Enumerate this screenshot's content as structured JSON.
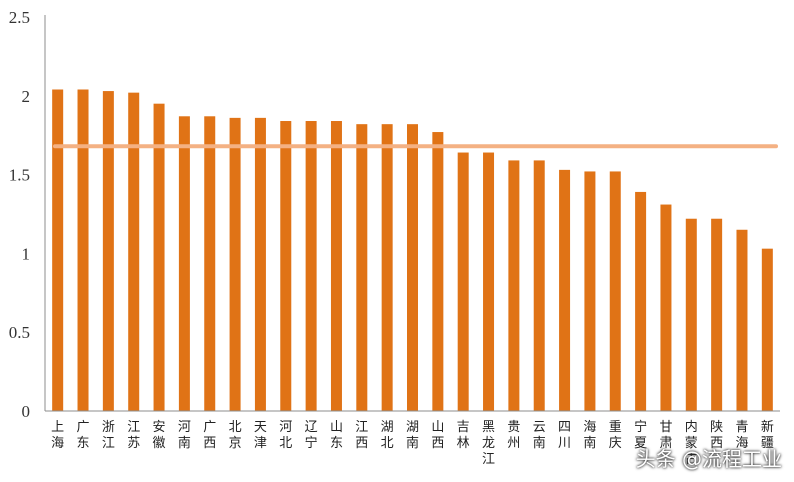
{
  "chart_data": {
    "type": "bar",
    "categories": [
      "上海",
      "广东",
      "浙江",
      "江苏",
      "安徽",
      "河南",
      "广西",
      "北京",
      "天津",
      "河北",
      "辽宁",
      "山东",
      "江西",
      "湖北",
      "湖南",
      "山西",
      "吉林",
      "黑龙江",
      "贵州",
      "云南",
      "四川",
      "海南",
      "重庆",
      "宁夏",
      "甘肃",
      "内蒙古",
      "陕西",
      "青海",
      "新疆"
    ],
    "values": [
      2.04,
      2.04,
      2.03,
      2.02,
      1.95,
      1.87,
      1.87,
      1.86,
      1.86,
      1.84,
      1.84,
      1.84,
      1.82,
      1.82,
      1.82,
      1.77,
      1.64,
      1.64,
      1.59,
      1.59,
      1.53,
      1.52,
      1.52,
      1.39,
      1.31,
      1.22,
      1.22,
      1.15,
      1.03
    ],
    "reference_line": 1.68,
    "ylim": [
      0,
      2.5
    ],
    "yticks": [
      "0",
      "0.5",
      "1",
      "1.5",
      "2",
      "2.5"
    ],
    "title": "",
    "xlabel": "",
    "ylabel": "",
    "grid": false,
    "colors": {
      "bar": "#E07316",
      "reference_line": "#F4B183",
      "axis": "#8c8c8c"
    }
  },
  "watermark": "头条 @流程工业"
}
